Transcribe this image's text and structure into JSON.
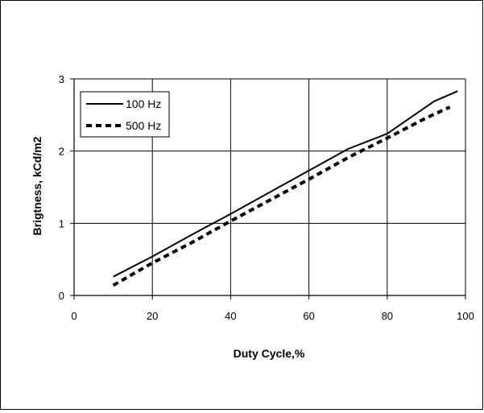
{
  "chart_data": {
    "type": "line",
    "title": "",
    "xlabel": "Duty Cycle,%",
    "ylabel": "Brigtness, kCd/m2",
    "xlim": [
      0,
      100
    ],
    "ylim": [
      0,
      3
    ],
    "x_ticks": [
      0,
      20,
      40,
      60,
      80,
      100
    ],
    "y_ticks": [
      0,
      1,
      2,
      3
    ],
    "grid": true,
    "legend": "top-left",
    "series": [
      {
        "name": "100 Hz",
        "style": "solid",
        "color": "#000000",
        "points": [
          [
            10,
            0.26
          ],
          [
            20,
            0.54
          ],
          [
            30,
            0.84
          ],
          [
            40,
            1.13
          ],
          [
            50,
            1.43
          ],
          [
            60,
            1.73
          ],
          [
            70,
            2.03
          ],
          [
            80,
            2.24
          ],
          [
            92,
            2.69
          ],
          [
            98,
            2.83
          ]
        ]
      },
      {
        "name": "500 Hz",
        "style": "dashed",
        "color": "#000000",
        "points": [
          [
            10,
            0.14
          ],
          [
            20,
            0.45
          ],
          [
            30,
            0.73
          ],
          [
            40,
            1.03
          ],
          [
            50,
            1.32
          ],
          [
            60,
            1.61
          ],
          [
            70,
            1.91
          ],
          [
            80,
            2.18
          ],
          [
            90,
            2.46
          ],
          [
            96,
            2.61
          ]
        ]
      }
    ]
  }
}
